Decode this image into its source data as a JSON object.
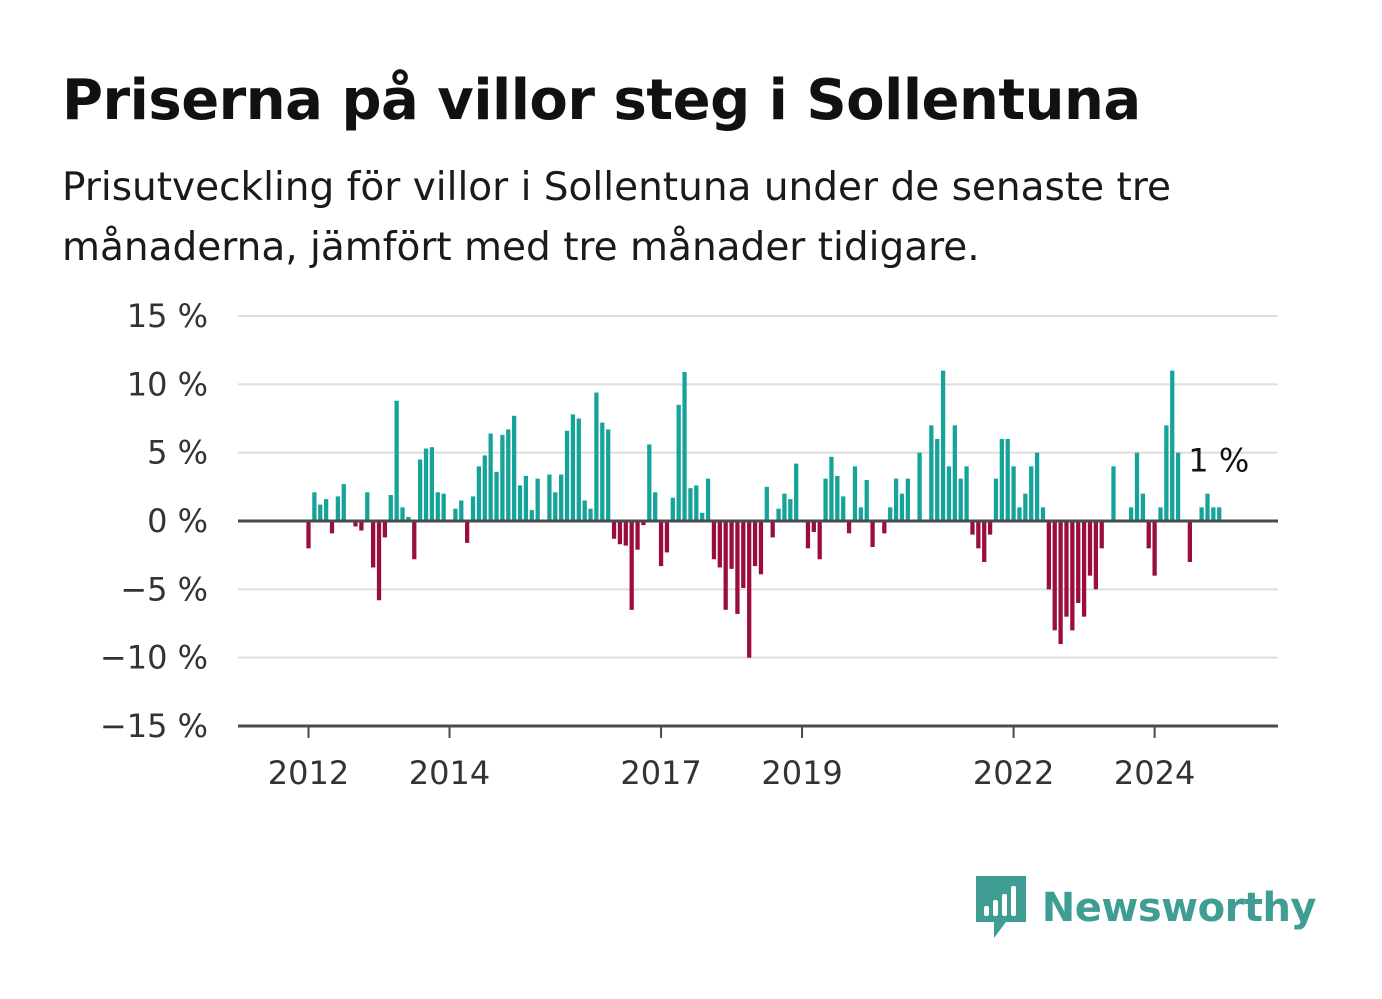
{
  "title": "Priserna på villor steg i Sollentuna",
  "subtitle": "Prisutveckling för villor i Sollentuna under de senaste tre månaderna, jämfört med tre månader tidigare.",
  "brand": "Newsworthy",
  "colors": {
    "positive": "#16a39a",
    "negative": "#9b0d3f",
    "grid": "#dddddd",
    "axis": "#4a4a4a",
    "brand": "#3f9d93"
  },
  "chart_data": {
    "type": "bar",
    "x_start": "2011-01",
    "x_end": "2025-10",
    "ylim": [
      -15,
      15
    ],
    "yticks": [
      15,
      10,
      5,
      0,
      -5,
      -10,
      -15
    ],
    "ytick_labels": [
      "15 %",
      "10 %",
      "5 %",
      "0 %",
      "−5 %",
      "−10 %",
      "−15 %"
    ],
    "xticks": [
      {
        "date": "2012-01",
        "label": "2012"
      },
      {
        "date": "2014-01",
        "label": "2014"
      },
      {
        "date": "2017-01",
        "label": "2017"
      },
      {
        "date": "2019-01",
        "label": "2019"
      },
      {
        "date": "2022-01",
        "label": "2022"
      },
      {
        "date": "2024-01",
        "label": "2024"
      }
    ],
    "start_month": "2012-01",
    "values": [
      -2,
      2.1,
      1.2,
      1.6,
      -0.9,
      1.8,
      2.7,
      0,
      -0.4,
      -0.7,
      2.1,
      -3.4,
      -5.8,
      -1.2,
      1.9,
      8.8,
      1,
      0.3,
      -2.8,
      4.5,
      5.3,
      5.4,
      2.1,
      2,
      0,
      0.9,
      1.5,
      -1.6,
      1.8,
      4,
      4.8,
      6.4,
      3.6,
      6.3,
      6.7,
      7.7,
      2.6,
      3.3,
      0.8,
      3.1,
      0,
      3.4,
      2.1,
      3.4,
      6.6,
      7.8,
      7.5,
      1.5,
      0.9,
      9.4,
      7.2,
      6.7,
      -1.3,
      -1.7,
      -1.8,
      -6.5,
      -2.1,
      -0.3,
      5.6,
      2.1,
      -3.3,
      -2.3,
      1.7,
      8.5,
      10.9,
      2.4,
      2.6,
      0.6,
      3.1,
      -2.8,
      -3.4,
      -6.5,
      -3.5,
      -6.8,
      -4.9,
      -10,
      -3.3,
      -3.9,
      2.5,
      -1.2,
      0.9,
      2,
      1.6,
      4.2,
      0,
      -2,
      -0.8,
      -2.8,
      3.1,
      4.7,
      3.3,
      1.8,
      -0.9,
      4,
      1,
      3,
      -1.9,
      0,
      -0.9,
      1,
      3.1,
      2,
      3.1,
      0,
      5,
      0,
      7,
      6,
      11,
      4,
      7,
      3.1,
      4,
      -1,
      -2,
      -3,
      -1,
      3.1,
      6,
      6,
      4,
      1,
      2,
      4,
      5,
      1,
      -5,
      -8,
      -9,
      -7,
      -8,
      -6,
      -7,
      -4,
      -5,
      -2,
      0,
      4,
      0,
      0,
      1,
      5,
      2,
      -2,
      -4,
      1,
      7,
      11,
      5,
      0,
      -3,
      0,
      1,
      2,
      1,
      1
    ],
    "last_value_label": "1 %"
  }
}
